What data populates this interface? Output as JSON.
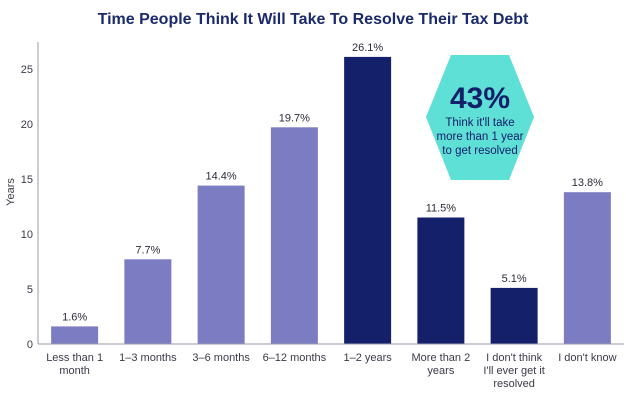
{
  "chart_data": {
    "type": "bar",
    "title": "Time People Think It Will Take To Resolve Their Tax Debt",
    "ylabel": "Years",
    "ylim": [
      0,
      28
    ],
    "yticks": [
      0,
      5,
      10,
      15,
      20,
      25
    ],
    "categories": [
      "Less than 1 month",
      "1–3 months",
      "3–6 months",
      "6–12 months",
      "1–2 years",
      "More than 2 years",
      "I don't think I'll ever get it resolved",
      "I don't know"
    ],
    "values": [
      1.6,
      7.7,
      14.4,
      19.7,
      26.1,
      11.5,
      5.1,
      13.8
    ],
    "value_labels": [
      "1.6%",
      "7.7%",
      "14.4%",
      "19.7%",
      "26.1%",
      "11.5%",
      "5.1%",
      "13.8%"
    ],
    "bar_colors": [
      "#7b7cc2",
      "#7b7cc2",
      "#7b7cc2",
      "#7b7cc2",
      "#14206a",
      "#14206a",
      "#14206a",
      "#7b7cc2"
    ],
    "grid": false,
    "callout": {
      "value": "43%",
      "text": "Think it'll take more than 1 year to get resolved",
      "color": "#5fe0d6"
    }
  },
  "colors": {
    "title": "#1b2a6b",
    "axis": "#9a9aaa",
    "light_bar": "#7b7cc2",
    "dark_bar": "#14206a"
  }
}
